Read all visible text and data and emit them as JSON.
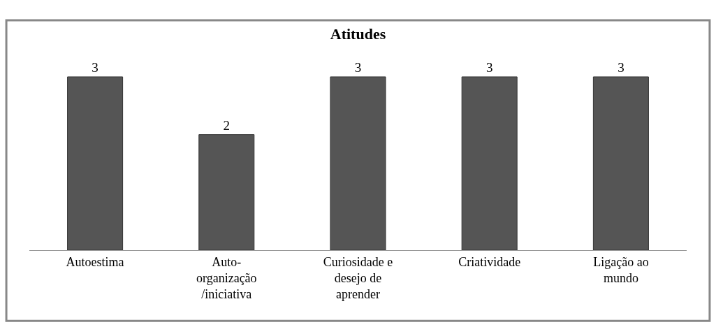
{
  "chart_data": {
    "type": "bar",
    "title": "Atitudes",
    "categories": [
      "Autoestima",
      "Auto-organização /iniciativa",
      "Curiosidade e desejo de aprender",
      "Criatividade",
      "Ligação ao mundo"
    ],
    "values": [
      3,
      2,
      3,
      3,
      3
    ],
    "color": "#555555",
    "data_labels": true
  }
}
